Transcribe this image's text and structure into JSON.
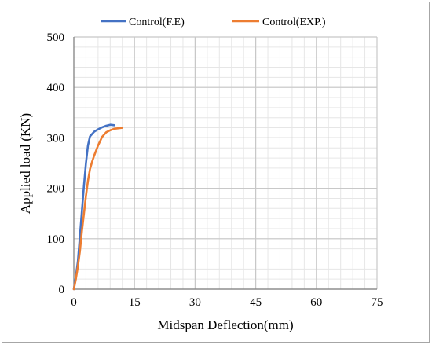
{
  "chart_data": {
    "type": "line",
    "xlabel": "Midspan Deflection(mm)",
    "ylabel": "Applied load (KN)",
    "xlim": [
      0,
      75
    ],
    "ylim": [
      0,
      500
    ],
    "x_ticks": [
      "0",
      "15",
      "30",
      "45",
      "60",
      "75"
    ],
    "y_ticks": [
      "0",
      "100",
      "200",
      "300",
      "400",
      "500"
    ],
    "grid": {
      "major": true,
      "minor": true
    },
    "legend_position": "top",
    "series": [
      {
        "name": "Control(F.E)",
        "color": "#4472C4",
        "points": [
          [
            0,
            0
          ],
          [
            0.5,
            25
          ],
          [
            1,
            55
          ],
          [
            1.5,
            105
          ],
          [
            2,
            155
          ],
          [
            2.5,
            205
          ],
          [
            3,
            250
          ],
          [
            3.5,
            285
          ],
          [
            4,
            303
          ],
          [
            5,
            312
          ],
          [
            6,
            317
          ],
          [
            7,
            321
          ],
          [
            8,
            324
          ],
          [
            9,
            326
          ],
          [
            10,
            325
          ]
        ]
      },
      {
        "name": "Control(EXP.)",
        "color": "#ED7D31",
        "points": [
          [
            0,
            0
          ],
          [
            0.5,
            20
          ],
          [
            1,
            45
          ],
          [
            1.5,
            75
          ],
          [
            2,
            115
          ],
          [
            2.5,
            150
          ],
          [
            3,
            185
          ],
          [
            3.5,
            215
          ],
          [
            4,
            238
          ],
          [
            4.5,
            252
          ],
          [
            5,
            264
          ],
          [
            6,
            285
          ],
          [
            7,
            302
          ],
          [
            8,
            311
          ],
          [
            9,
            315
          ],
          [
            10,
            318
          ],
          [
            11,
            319
          ],
          [
            12,
            320
          ]
        ]
      }
    ]
  }
}
